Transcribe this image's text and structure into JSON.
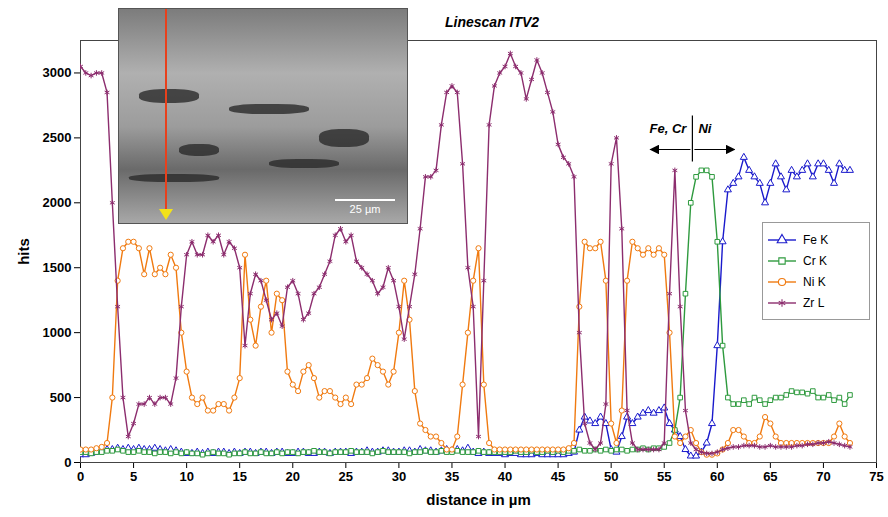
{
  "chart_data": {
    "type": "line",
    "title": "Linescan ITV2",
    "xlabel": "distance in µm",
    "ylabel": "hits",
    "image_label": "25 µm",
    "xlim": [
      0,
      75
    ],
    "xticks": [
      0,
      5,
      10,
      15,
      20,
      25,
      30,
      35,
      40,
      45,
      50,
      55,
      60,
      65,
      70,
      75
    ],
    "ylim": [
      0,
      3250
    ],
    "yticks": [
      0,
      500,
      1000,
      1500,
      2000,
      2500,
      3000
    ],
    "grid": false,
    "legend": "right",
    "annotations": [
      {
        "text": "Fe, Cr",
        "x": 57.7,
        "y": 2530
      },
      {
        "text": "Ni",
        "x": 57.7,
        "y": 2530
      }
    ],
    "x": [
      0,
      0.5,
      1,
      1.5,
      2,
      2.5,
      3,
      3.5,
      4,
      4.5,
      5,
      5.5,
      6,
      6.5,
      7,
      7.5,
      8,
      8.5,
      9,
      9.5,
      10,
      10.5,
      11,
      11.5,
      12,
      12.5,
      13,
      13.5,
      14,
      14.5,
      15,
      15.5,
      16,
      16.5,
      17,
      17.5,
      18,
      18.5,
      19,
      19.5,
      20,
      20.5,
      21,
      21.5,
      22,
      22.5,
      23,
      23.5,
      24,
      24.5,
      25,
      25.5,
      26,
      26.5,
      27,
      27.5,
      28,
      28.5,
      29,
      29.5,
      30,
      30.5,
      31,
      31.5,
      32,
      32.5,
      33,
      33.5,
      34,
      34.5,
      35,
      35.5,
      36,
      36.5,
      37,
      37.5,
      38,
      38.5,
      39,
      39.5,
      40,
      40.5,
      41,
      41.5,
      42,
      42.5,
      43,
      43.5,
      44,
      44.5,
      45,
      45.5,
      46,
      46.5,
      47,
      47.5,
      48,
      48.5,
      49,
      49.5,
      50,
      50.5,
      51,
      51.5,
      52,
      52.5,
      53,
      53.5,
      54,
      54.5,
      55,
      55.5,
      56,
      56.5,
      57,
      57.5,
      58,
      58.5,
      59,
      59.5,
      60,
      60.5,
      61,
      61.5,
      62,
      62.5,
      63,
      63.5,
      64,
      64.5,
      65,
      65.5,
      66,
      66.5,
      67,
      67.5,
      68,
      68.5,
      69,
      69.5,
      70,
      70.5,
      71,
      71.5,
      72,
      72.5
    ],
    "series": [
      {
        "name": "Fe K",
        "color": "#1a1acc",
        "marker": "triangle",
        "values": [
          60,
          60,
          70,
          80,
          90,
          100,
          100,
          110,
          100,
          110,
          100,
          110,
          100,
          100,
          110,
          100,
          90,
          100,
          90,
          80,
          70,
          70,
          80,
          70,
          80,
          70,
          80,
          80,
          70,
          80,
          70,
          80,
          80,
          70,
          80,
          80,
          70,
          80,
          80,
          70,
          70,
          80,
          80,
          70,
          70,
          80,
          80,
          70,
          80,
          80,
          80,
          70,
          80,
          80,
          90,
          80,
          80,
          90,
          90,
          80,
          80,
          90,
          90,
          80,
          100,
          90,
          90,
          80,
          90,
          100,
          90,
          100,
          90,
          110,
          80,
          70,
          80,
          70,
          70,
          70,
          60,
          70,
          70,
          60,
          60,
          60,
          70,
          60,
          60,
          60,
          60,
          60,
          70,
          80,
          250,
          350,
          320,
          300,
          350,
          300,
          100,
          80,
          200,
          350,
          300,
          350,
          380,
          400,
          380,
          400,
          420,
          300,
          250,
          200,
          100,
          50,
          50,
          80,
          150,
          300,
          900,
          1700,
          2100,
          2150,
          2200,
          2350,
          2250,
          2200,
          2150,
          2000,
          2150,
          2300,
          2200,
          2100,
          2250,
          2200,
          2250,
          2300,
          2200,
          2300,
          2300,
          2250,
          2150,
          2300,
          2250,
          2250
        ]
      },
      {
        "name": "Cr K",
        "color": "#2e9a3e",
        "marker": "square",
        "values": [
          80,
          80,
          70,
          80,
          80,
          90,
          90,
          100,
          90,
          80,
          80,
          90,
          80,
          80,
          70,
          80,
          80,
          70,
          80,
          70,
          80,
          70,
          70,
          60,
          70,
          80,
          70,
          70,
          60,
          70,
          70,
          80,
          70,
          70,
          80,
          70,
          70,
          80,
          70,
          80,
          80,
          70,
          80,
          80,
          90,
          80,
          80,
          70,
          80,
          80,
          80,
          90,
          80,
          80,
          80,
          70,
          80,
          90,
          80,
          80,
          80,
          80,
          70,
          80,
          80,
          90,
          80,
          80,
          90,
          80,
          80,
          90,
          80,
          80,
          80,
          90,
          80,
          80,
          80,
          80,
          80,
          80,
          90,
          80,
          80,
          90,
          80,
          80,
          90,
          80,
          90,
          80,
          90,
          90,
          100,
          90,
          90,
          100,
          90,
          100,
          90,
          100,
          100,
          90,
          100,
          100,
          110,
          100,
          110,
          110,
          120,
          150,
          250,
          500,
          1300,
          2000,
          2200,
          2250,
          2250,
          2200,
          1700,
          900,
          500,
          450,
          450,
          480,
          450,
          500,
          480,
          450,
          480,
          500,
          500,
          520,
          550,
          540,
          540,
          530,
          550,
          500,
          500,
          520,
          480,
          500,
          450,
          520
        ]
      },
      {
        "name": "Ni K",
        "color": "#f07a10",
        "marker": "circle",
        "values": [
          100,
          100,
          100,
          110,
          120,
          150,
          500,
          1400,
          1650,
          1700,
          1700,
          1650,
          1450,
          1650,
          1450,
          1500,
          1450,
          1600,
          1500,
          1000,
          700,
          500,
          450,
          500,
          400,
          400,
          450,
          450,
          400,
          500,
          650,
          1600,
          1100,
          900,
          1200,
          1400,
          1000,
          1300,
          1250,
          700,
          600,
          550,
          700,
          750,
          650,
          500,
          550,
          550,
          500,
          450,
          500,
          450,
          600,
          600,
          650,
          800,
          750,
          700,
          600,
          700,
          1000,
          1400,
          1100,
          550,
          300,
          250,
          200,
          200,
          150,
          100,
          100,
          200,
          600,
          1000,
          1400,
          1650,
          600,
          150,
          100,
          100,
          100,
          100,
          100,
          100,
          100,
          100,
          100,
          100,
          100,
          100,
          100,
          100,
          110,
          150,
          1200,
          1700,
          1650,
          1650,
          1700,
          1400,
          300,
          150,
          400,
          1400,
          1700,
          1650,
          1600,
          1650,
          1600,
          1650,
          1600,
          1000,
          200,
          150,
          200,
          250,
          150,
          80,
          60,
          60,
          70,
          100,
          150,
          250,
          250,
          200,
          150,
          150,
          200,
          350,
          300,
          200,
          150,
          150,
          150,
          150,
          150,
          150,
          150,
          150,
          150,
          150,
          200,
          300,
          200,
          150
        ]
      },
      {
        "name": "Zr L",
        "color": "#8c2d6e",
        "marker": "asterisk",
        "values": [
          3050,
          3000,
          2980,
          3000,
          3000,
          2850,
          2000,
          1200,
          500,
          200,
          300,
          450,
          450,
          500,
          450,
          500,
          500,
          450,
          650,
          1200,
          1600,
          1700,
          1600,
          1600,
          1750,
          1700,
          1750,
          1600,
          1700,
          1650,
          1500,
          900,
          1300,
          1450,
          1400,
          1250,
          1100,
          1150,
          1050,
          1350,
          1400,
          1300,
          1100,
          1150,
          1300,
          1350,
          1450,
          1550,
          1750,
          1800,
          1700,
          1750,
          1550,
          1500,
          1450,
          1400,
          1300,
          1350,
          1500,
          1400,
          1200,
          950,
          1200,
          1450,
          1800,
          2200,
          2200,
          2250,
          2600,
          2850,
          2900,
          2850,
          2300,
          1500,
          1200,
          200,
          1400,
          2600,
          2900,
          3000,
          3050,
          3150,
          3050,
          3000,
          2800,
          2950,
          3100,
          3000,
          2850,
          2700,
          2450,
          2350,
          2300,
          2200,
          1000,
          300,
          150,
          100,
          150,
          450,
          2300,
          2500,
          1800,
          400,
          150,
          100,
          100,
          100,
          100,
          100,
          150,
          1300,
          2250,
          1200,
          400,
          150,
          100,
          80,
          70,
          70,
          80,
          100,
          110,
          120,
          120,
          130,
          130,
          130,
          120,
          120,
          130,
          120,
          120,
          120,
          120,
          130,
          130,
          140,
          140,
          150,
          150,
          160,
          150,
          140,
          130,
          120
        ]
      }
    ]
  }
}
